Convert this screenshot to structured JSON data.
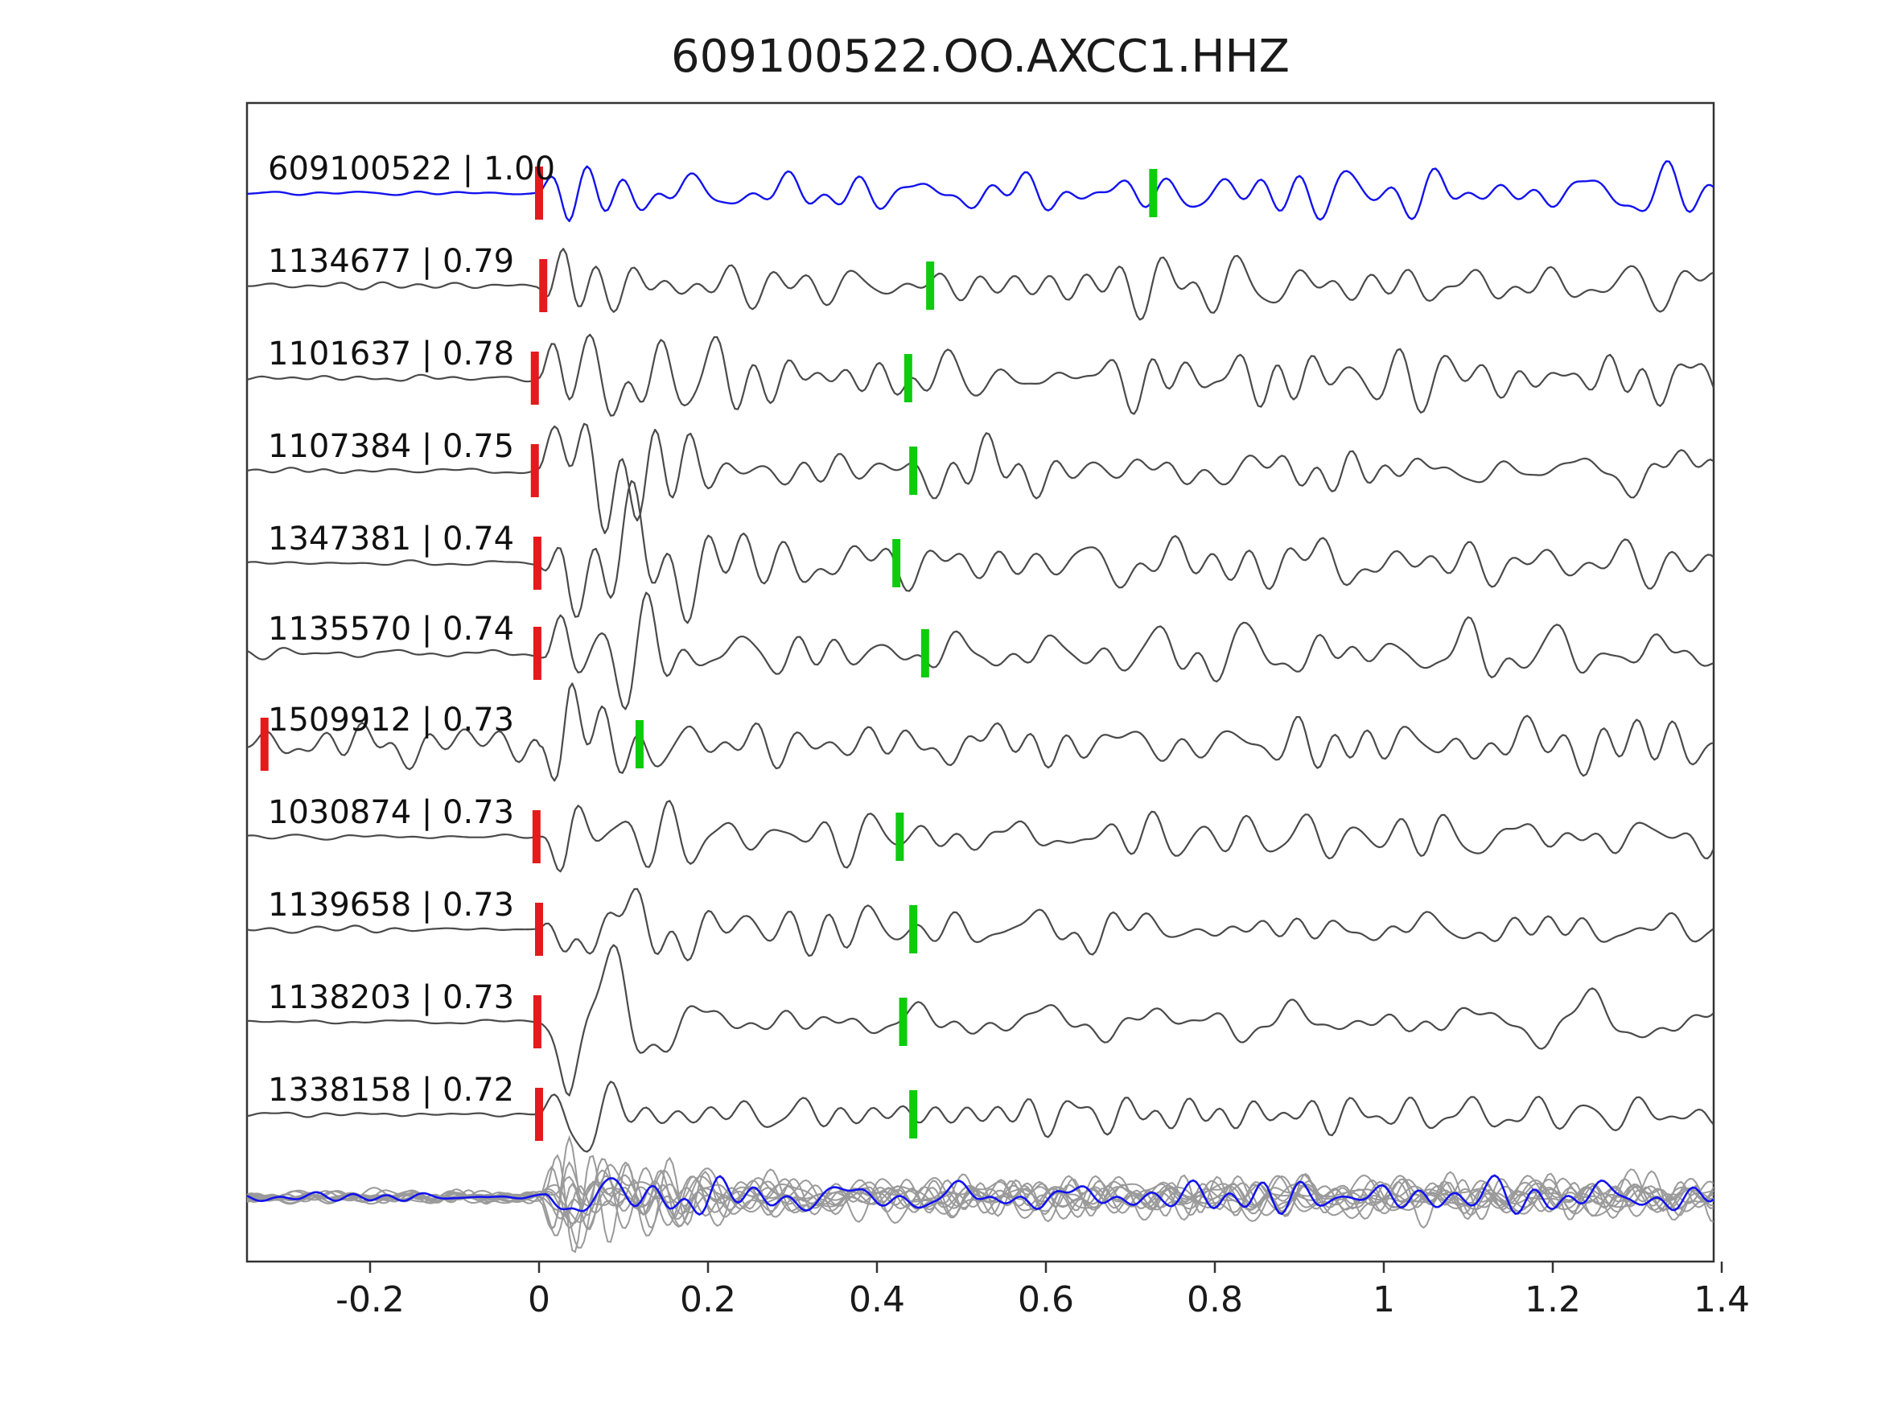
{
  "header": {
    "title": "609100522.OO.AXCC1.HHZ"
  },
  "chart_data": {
    "type": "line",
    "title": "609100522.OO.AXCC1.HHZ",
    "description": "Template matching / matched-filter waveform comparison plot. Top blue trace is the template event, gray traces are detected events labeled 'id | correlation', bottom row is an overlay stack of all gray detections with the blue template. Red bars mark the alignment pick near t=0, green bars mark a secondary pick.",
    "xlabel": "",
    "ylabel": "",
    "xlim": [
      -0.346,
      1.4
    ],
    "grid": false,
    "legend_position": "none",
    "xticks": [
      {
        "label": "-0.2",
        "t": -0.2
      },
      {
        "label": "0",
        "t": 0.0
      },
      {
        "label": "0.2",
        "t": 0.2
      },
      {
        "label": "0.4",
        "t": 0.4
      },
      {
        "label": "0.6",
        "t": 0.6
      },
      {
        "label": "0.8",
        "t": 0.8
      },
      {
        "label": "1",
        "t": 1.0
      },
      {
        "label": "1.2",
        "t": 1.2
      },
      {
        "label": "1.4",
        "t": 1.4
      }
    ],
    "colors": {
      "template_trace": "#1212ee",
      "detection_trace": "#4a4a4a",
      "stack_member": "#9a9a9a",
      "red_pick": "#e41a1c",
      "green_pick": "#0ecb0e",
      "axes": "#333333"
    },
    "traces": [
      {
        "label": "609100522 | 1.00",
        "id": "609100522",
        "correlation": 1.0,
        "is_template": true,
        "red_pick": 0.0,
        "green_pick": 0.727,
        "pre_event_noise": "low"
      },
      {
        "label": "1134677 | 0.79",
        "id": "1134677",
        "correlation": 0.79,
        "is_template": false,
        "red_pick": 0.005,
        "green_pick": 0.463,
        "pre_event_noise": "low"
      },
      {
        "label": "1101637 | 0.78",
        "id": "1101637",
        "correlation": 0.78,
        "is_template": false,
        "red_pick": -0.005,
        "green_pick": 0.437,
        "pre_event_noise": "low"
      },
      {
        "label": "1107384 | 0.75",
        "id": "1107384",
        "correlation": 0.75,
        "is_template": false,
        "red_pick": -0.005,
        "green_pick": 0.443,
        "pre_event_noise": "low"
      },
      {
        "label": "1347381 | 0.74",
        "id": "1347381",
        "correlation": 0.74,
        "is_template": false,
        "red_pick": -0.002,
        "green_pick": 0.423,
        "pre_event_noise": "low"
      },
      {
        "label": "1135570 | 0.74",
        "id": "1135570",
        "correlation": 0.74,
        "is_template": false,
        "red_pick": -0.002,
        "green_pick": 0.457,
        "pre_event_noise": "medium"
      },
      {
        "label": "1509912 | 0.73",
        "id": "1509912",
        "correlation": 0.73,
        "is_template": false,
        "red_pick": -0.325,
        "green_pick": 0.119,
        "pre_event_noise": "high"
      },
      {
        "label": "1030874 | 0.73",
        "id": "1030874",
        "correlation": 0.73,
        "is_template": false,
        "red_pick": -0.003,
        "green_pick": 0.427,
        "pre_event_noise": "low"
      },
      {
        "label": "1139658 | 0.73",
        "id": "1139658",
        "correlation": 0.73,
        "is_template": false,
        "red_pick": 0.0,
        "green_pick": 0.443,
        "pre_event_noise": "low"
      },
      {
        "label": "1138203 | 0.73",
        "id": "1138203",
        "correlation": 0.73,
        "is_template": false,
        "red_pick": -0.002,
        "green_pick": 0.431,
        "pre_event_noise": "low"
      },
      {
        "label": "1338158 | 0.72",
        "id": "1338158",
        "correlation": 0.72,
        "is_template": false,
        "red_pick": 0.0,
        "green_pick": 0.443,
        "pre_event_noise": "low"
      }
    ],
    "stack": {
      "member_count": 11,
      "has_template_overlay": true
    }
  }
}
